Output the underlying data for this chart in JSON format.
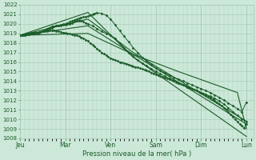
{
  "bg_color": "#cce8d8",
  "grid_color": "#a8c8b8",
  "line_color": "#1a5c28",
  "xlabel": "Pression niveau de la mer( hPa )",
  "tick_color": "#1a5c28",
  "ylim": [
    1008,
    1022
  ],
  "yticks": [
    1008,
    1009,
    1010,
    1011,
    1012,
    1013,
    1014,
    1015,
    1016,
    1017,
    1018,
    1019,
    1020,
    1021,
    1022
  ],
  "xdays": [
    "Jeu",
    "Mar",
    "Ven",
    "Sam",
    "Dim",
    "Lun"
  ],
  "day_positions": [
    0,
    1,
    2,
    3,
    4,
    5
  ],
  "dense_series": [
    {
      "x": [
        0.0,
        0.05,
        0.1,
        0.15,
        0.2,
        0.25,
        0.3,
        0.35,
        0.4,
        0.45,
        0.5,
        0.55,
        0.6,
        0.65,
        0.7,
        0.75,
        0.8,
        0.85,
        0.9,
        0.95,
        1.0,
        1.05,
        1.1,
        1.15,
        1.2,
        1.25,
        1.3,
        1.35,
        1.4,
        1.45,
        1.5,
        1.55,
        1.6,
        1.65,
        1.7,
        1.75,
        1.8,
        1.85,
        1.9,
        1.95,
        2.0,
        2.05,
        2.1,
        2.15,
        2.2,
        2.25,
        2.3,
        2.35,
        2.4,
        2.45,
        2.5,
        2.55,
        2.6,
        2.65,
        2.7,
        2.75,
        2.8,
        2.85,
        2.9,
        2.95,
        3.0,
        3.05,
        3.1,
        3.15,
        3.2,
        3.25,
        3.3,
        3.35,
        3.4,
        3.45,
        3.5,
        3.55,
        3.6,
        3.65,
        3.7,
        3.75,
        3.8,
        3.85,
        3.9,
        3.95,
        4.0,
        4.05,
        4.1,
        4.15,
        4.2,
        4.25,
        4.3,
        4.35,
        4.4,
        4.45,
        4.5,
        4.55,
        4.6,
        4.65,
        4.7,
        4.75,
        4.8,
        4.85,
        4.9,
        4.95,
        5.0
      ],
      "y": [
        1018.8,
        1018.85,
        1018.9,
        1018.95,
        1019.0,
        1019.05,
        1019.1,
        1019.1,
        1019.1,
        1019.15,
        1019.2,
        1019.22,
        1019.25,
        1019.28,
        1019.3,
        1019.28,
        1019.25,
        1019.2,
        1019.15,
        1019.1,
        1019.05,
        1019.0,
        1018.95,
        1018.9,
        1018.85,
        1018.8,
        1018.7,
        1018.6,
        1018.5,
        1018.35,
        1018.2,
        1018.0,
        1017.8,
        1017.6,
        1017.4,
        1017.2,
        1017.0,
        1016.85,
        1016.7,
        1016.55,
        1016.4,
        1016.3,
        1016.2,
        1016.1,
        1016.0,
        1015.95,
        1015.9,
        1015.82,
        1015.74,
        1015.66,
        1015.58,
        1015.5,
        1015.42,
        1015.34,
        1015.26,
        1015.18,
        1015.1,
        1015.0,
        1014.9,
        1014.8,
        1014.7,
        1014.6,
        1014.5,
        1014.42,
        1014.34,
        1014.26,
        1014.18,
        1014.1,
        1014.0,
        1013.9,
        1013.8,
        1013.7,
        1013.6,
        1013.5,
        1013.4,
        1013.3,
        1013.2,
        1013.1,
        1013.0,
        1012.9,
        1012.8,
        1012.7,
        1012.55,
        1012.4,
        1012.25,
        1012.1,
        1011.95,
        1011.8,
        1011.6,
        1011.4,
        1011.2,
        1011.0,
        1010.75,
        1010.5,
        1010.25,
        1010.0,
        1009.75,
        1009.5,
        1009.3,
        1009.1,
        1009.5
      ]
    },
    {
      "x": [
        0.0,
        0.05,
        0.1,
        0.15,
        0.2,
        0.25,
        0.3,
        0.35,
        0.4,
        0.45,
        0.5,
        0.55,
        0.6,
        0.65,
        0.7,
        0.75,
        0.8,
        0.85,
        0.9,
        0.95,
        1.0,
        1.05,
        1.1,
        1.15,
        1.2,
        1.25,
        1.3,
        1.35,
        1.4,
        1.45,
        1.5,
        1.55,
        1.6,
        1.65,
        1.7,
        1.8,
        1.9,
        2.0,
        2.1,
        2.2,
        2.3,
        2.4,
        2.5,
        2.6,
        2.7,
        2.8,
        2.9,
        3.0,
        3.1,
        3.2,
        3.3,
        3.4,
        3.5,
        3.6,
        3.7,
        3.8,
        3.9,
        4.0,
        4.1,
        4.2,
        4.3,
        4.4,
        4.5,
        4.6,
        4.7,
        4.8,
        4.9,
        5.0
      ],
      "y": [
        1018.8,
        1018.82,
        1018.84,
        1018.87,
        1018.9,
        1018.95,
        1019.0,
        1019.05,
        1019.1,
        1019.15,
        1019.2,
        1019.3,
        1019.4,
        1019.5,
        1019.6,
        1019.7,
        1019.8,
        1019.85,
        1019.9,
        1019.95,
        1020.0,
        1020.1,
        1020.2,
        1020.3,
        1020.4,
        1020.5,
        1020.6,
        1020.65,
        1020.7,
        1020.75,
        1020.8,
        1020.9,
        1021.0,
        1021.1,
        1021.15,
        1021.1,
        1020.9,
        1020.5,
        1019.9,
        1019.3,
        1018.7,
        1018.1,
        1017.5,
        1017.0,
        1016.5,
        1016.1,
        1015.7,
        1015.4,
        1015.1,
        1014.85,
        1014.6,
        1014.4,
        1014.2,
        1014.0,
        1013.8,
        1013.6,
        1013.4,
        1013.2,
        1013.0,
        1012.8,
        1012.55,
        1012.3,
        1012.0,
        1011.7,
        1011.4,
        1011.1,
        1010.8,
        1011.8
      ]
    },
    {
      "x": [
        0.0,
        0.05,
        0.1,
        0.15,
        0.2,
        0.25,
        0.3,
        0.35,
        0.4,
        0.45,
        0.5,
        0.55,
        0.6,
        0.65,
        0.7,
        0.75,
        0.8,
        0.85,
        0.9,
        0.95,
        1.0,
        1.05,
        1.1,
        1.15,
        1.2,
        1.25,
        1.3,
        1.35,
        1.4,
        1.45,
        1.5,
        1.6,
        1.7,
        1.8,
        1.9,
        2.0,
        2.1,
        2.2,
        2.3,
        2.4,
        2.5,
        2.6,
        2.7,
        2.8,
        2.9,
        3.0,
        3.1,
        3.2,
        3.3,
        3.4,
        3.5,
        3.6,
        3.7,
        3.8,
        3.9,
        4.0,
        4.1,
        4.2,
        4.3,
        4.4,
        4.5,
        4.6,
        4.7,
        4.8,
        4.9,
        5.0
      ],
      "y": [
        1018.8,
        1018.82,
        1018.85,
        1018.88,
        1018.92,
        1018.96,
        1019.0,
        1019.04,
        1019.08,
        1019.12,
        1019.2,
        1019.35,
        1019.5,
        1019.6,
        1019.7,
        1019.75,
        1019.8,
        1019.82,
        1019.84,
        1019.86,
        1019.9,
        1019.95,
        1020.0,
        1020.1,
        1020.2,
        1020.3,
        1020.35,
        1020.3,
        1020.2,
        1020.1,
        1020.0,
        1019.8,
        1019.5,
        1019.2,
        1019.0,
        1018.8,
        1018.5,
        1018.0,
        1017.5,
        1017.0,
        1016.6,
        1016.2,
        1015.9,
        1015.6,
        1015.3,
        1015.0,
        1014.75,
        1014.5,
        1014.25,
        1014.0,
        1013.8,
        1013.6,
        1013.4,
        1013.2,
        1013.0,
        1012.8,
        1012.6,
        1012.4,
        1012.2,
        1011.9,
        1011.6,
        1011.2,
        1010.8,
        1010.4,
        1010.0,
        1009.8
      ]
    }
  ],
  "straight_series": [
    {
      "x": [
        0.0,
        1.5,
        2.5,
        3.5,
        4.8,
        5.0
      ],
      "y": [
        1018.8,
        1019.0,
        1016.8,
        1015.0,
        1012.8,
        1009.0
      ]
    },
    {
      "x": [
        0.0,
        1.5,
        2.5,
        5.0
      ],
      "y": [
        1018.8,
        1021.2,
        1016.5,
        1008.2
      ]
    },
    {
      "x": [
        0.0,
        1.5,
        2.5,
        5.0
      ],
      "y": [
        1018.8,
        1020.5,
        1017.0,
        1009.8
      ]
    },
    {
      "x": [
        0.0,
        1.5,
        2.5,
        5.0
      ],
      "y": [
        1018.8,
        1019.8,
        1016.8,
        1009.5
      ]
    }
  ]
}
